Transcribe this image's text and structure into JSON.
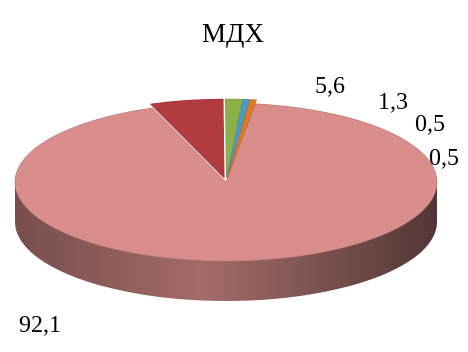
{
  "chart_data": {
    "type": "pie",
    "title": "МДХ",
    "categories": [
      "",
      "",
      "",
      "",
      ""
    ],
    "values": [
      92.1,
      5.6,
      1.3,
      0.5,
      0.5
    ],
    "labels": [
      "92,1",
      "5,6",
      "1,3",
      "0,5",
      "0,5"
    ],
    "colors": [
      "#d98e8c",
      "#b23b40",
      "#8db04a",
      "#4a9cc7",
      "#e07a25"
    ],
    "exploded_slices": [
      1,
      2,
      3,
      4
    ],
    "style": "3d",
    "legend": "none"
  }
}
